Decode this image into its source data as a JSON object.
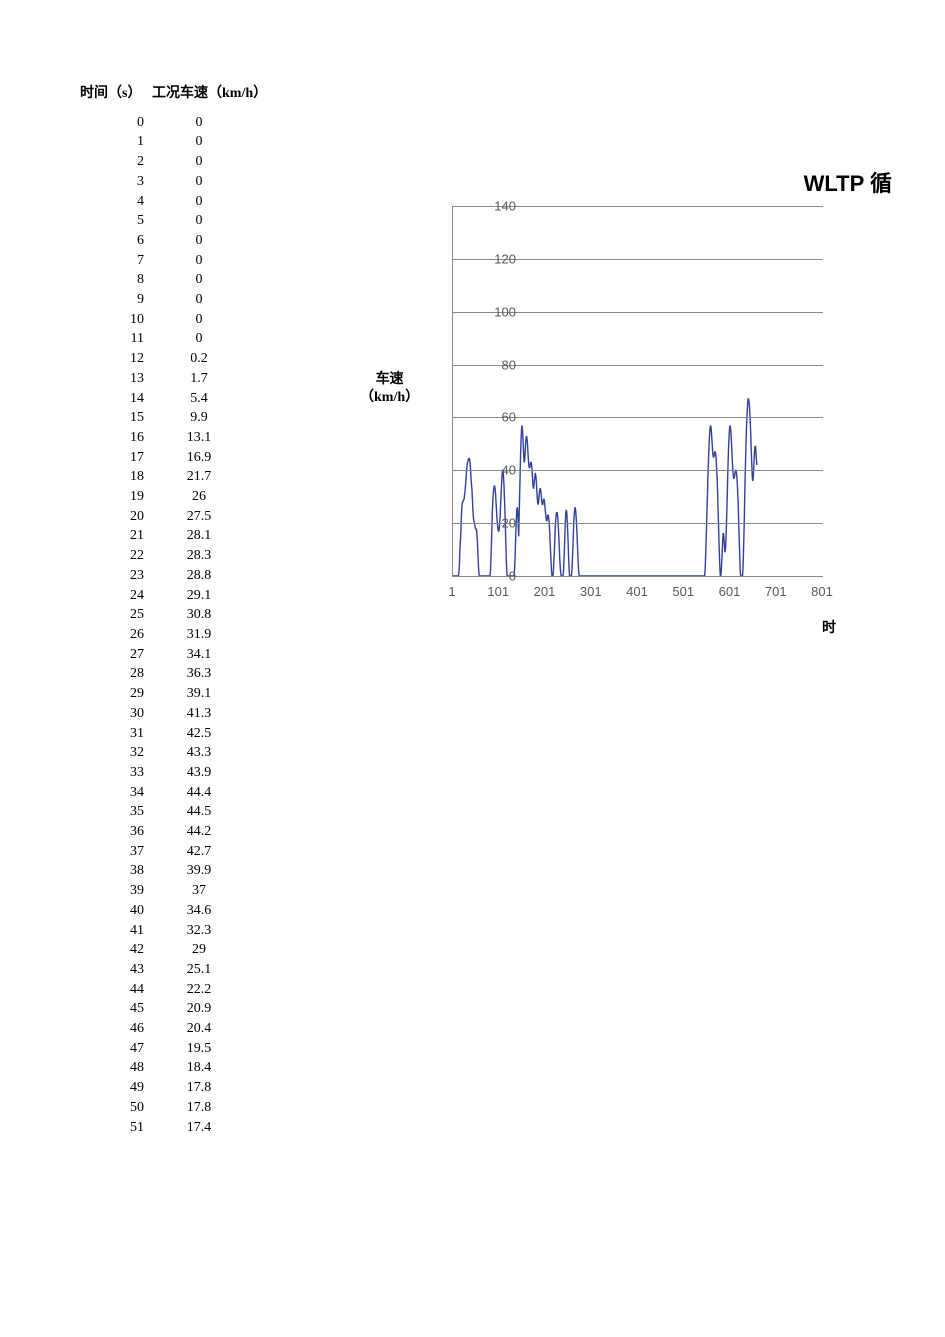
{
  "table": {
    "header_time": "时间（s）",
    "header_speed": "工况车速（km/h）",
    "rows": [
      [
        0,
        "0"
      ],
      [
        1,
        "0"
      ],
      [
        2,
        "0"
      ],
      [
        3,
        "0"
      ],
      [
        4,
        "0"
      ],
      [
        5,
        "0"
      ],
      [
        6,
        "0"
      ],
      [
        7,
        "0"
      ],
      [
        8,
        "0"
      ],
      [
        9,
        "0"
      ],
      [
        10,
        "0"
      ],
      [
        11,
        "0"
      ],
      [
        12,
        "0.2"
      ],
      [
        13,
        "1.7"
      ],
      [
        14,
        "5.4"
      ],
      [
        15,
        "9.9"
      ],
      [
        16,
        "13.1"
      ],
      [
        17,
        "16.9"
      ],
      [
        18,
        "21.7"
      ],
      [
        19,
        "26"
      ],
      [
        20,
        "27.5"
      ],
      [
        21,
        "28.1"
      ],
      [
        22,
        "28.3"
      ],
      [
        23,
        "28.8"
      ],
      [
        24,
        "29.1"
      ],
      [
        25,
        "30.8"
      ],
      [
        26,
        "31.9"
      ],
      [
        27,
        "34.1"
      ],
      [
        28,
        "36.3"
      ],
      [
        29,
        "39.1"
      ],
      [
        30,
        "41.3"
      ],
      [
        31,
        "42.5"
      ],
      [
        32,
        "43.3"
      ],
      [
        33,
        "43.9"
      ],
      [
        34,
        "44.4"
      ],
      [
        35,
        "44.5"
      ],
      [
        36,
        "44.2"
      ],
      [
        37,
        "42.7"
      ],
      [
        38,
        "39.9"
      ],
      [
        39,
        "37"
      ],
      [
        40,
        "34.6"
      ],
      [
        41,
        "32.3"
      ],
      [
        42,
        "29"
      ],
      [
        43,
        "25.1"
      ],
      [
        44,
        "22.2"
      ],
      [
        45,
        "20.9"
      ],
      [
        46,
        "20.4"
      ],
      [
        47,
        "19.5"
      ],
      [
        48,
        "18.4"
      ],
      [
        49,
        "17.8"
      ],
      [
        50,
        "17.8"
      ],
      [
        51,
        "17.4"
      ]
    ]
  },
  "chart": {
    "type": "line",
    "title": "WLTP 循",
    "ylabel_line1": "车速",
    "ylabel_line2": "（km/h）",
    "xlabel": "时",
    "ylim": [
      0,
      140
    ],
    "ytick_step": 20,
    "xlim": [
      1,
      801
    ],
    "xtick_start": 1,
    "xtick_step": 100,
    "line_color": "#31409c",
    "line_width": 1.4,
    "grid_color": "#888888",
    "tick_color": "#595959",
    "background_color": "#ffffff",
    "tick_fontsize": 13,
    "label_fontsize": 14,
    "title_fontsize": 22,
    "series": [
      0,
      0,
      0,
      0,
      0,
      0,
      0,
      0,
      0,
      0,
      0,
      0,
      0.2,
      1.7,
      5.4,
      9.9,
      13.1,
      16.9,
      21.7,
      26,
      27.5,
      28.1,
      28.3,
      28.8,
      29.1,
      30.8,
      31.9,
      34.1,
      36.3,
      39.1,
      41.3,
      42.5,
      43.3,
      43.9,
      44.4,
      44.5,
      44.2,
      42.7,
      39.9,
      37,
      34.6,
      32.3,
      29,
      25.1,
      22.2,
      20.9,
      20.4,
      19.5,
      18.4,
      17.8,
      17.8,
      17.4,
      15,
      12,
      8,
      4,
      1,
      0,
      0,
      0,
      0,
      0,
      0,
      0,
      0,
      0,
      0,
      0,
      0,
      0,
      0,
      0,
      0,
      0,
      0,
      0,
      0,
      0,
      0,
      0,
      0,
      2,
      6,
      12,
      18,
      24,
      28,
      31,
      33,
      34,
      34,
      33,
      31,
      28,
      25,
      22,
      20,
      18,
      17,
      17,
      18,
      20,
      23,
      27,
      31,
      35,
      38,
      40,
      40,
      38,
      35,
      31,
      26,
      20,
      14,
      8,
      3,
      0,
      0,
      0,
      0,
      0,
      0,
      0,
      0,
      0,
      0,
      0,
      0,
      0,
      0,
      0,
      0,
      2,
      6,
      11,
      17,
      22,
      25,
      26,
      24,
      20,
      15,
      22,
      30,
      38,
      45,
      51,
      55,
      57,
      56,
      53,
      49,
      45,
      43,
      44,
      47,
      50,
      52,
      53,
      52,
      50,
      47,
      44,
      42,
      41,
      41,
      42,
      43,
      43,
      42,
      40,
      37,
      34,
      33,
      34,
      36,
      38,
      39,
      38,
      36,
      33,
      30,
      28,
      27,
      28,
      30,
      32,
      33,
      33,
      32,
      30,
      28,
      27,
      27,
      28,
      29,
      29,
      28,
      26,
      24,
      22,
      21,
      21,
      22,
      23,
      23,
      22,
      20,
      17,
      13,
      9,
      5,
      2,
      0,
      0,
      0,
      2,
      5,
      9,
      14,
      18,
      21,
      23,
      24,
      24,
      23,
      21,
      18,
      14,
      10,
      6,
      3,
      1,
      0,
      0,
      0,
      0,
      0,
      2,
      6,
      11,
      16,
      21,
      24,
      25,
      24,
      21,
      17,
      12,
      7,
      3,
      0,
      0,
      0,
      0,
      0,
      2,
      5,
      10,
      15,
      20,
      23,
      25,
      26,
      25,
      23,
      20,
      16,
      12,
      8,
      4,
      1,
      0,
      0,
      0,
      0,
      0,
      0,
      0,
      0,
      0,
      0,
      0,
      0,
      0,
      0,
      0,
      0,
      0,
      0,
      0,
      0,
      0,
      0,
      0,
      0,
      0,
      0,
      0,
      0,
      0,
      0,
      0,
      0,
      0,
      0,
      0,
      0,
      0,
      0,
      0,
      0,
      0,
      0,
      0,
      0,
      0,
      0,
      0,
      0,
      0,
      0,
      0,
      0,
      0,
      0,
      0,
      0,
      0,
      0,
      0,
      0,
      0,
      0,
      0,
      0,
      0,
      0,
      0,
      0,
      0,
      0,
      0,
      0,
      0,
      0,
      0,
      0,
      0,
      0,
      0,
      0,
      0,
      0,
      0,
      0,
      0,
      0,
      0,
      0,
      0,
      0,
      0,
      0,
      0,
      0,
      0,
      0,
      0,
      0,
      0,
      0,
      0,
      0,
      0,
      0,
      0,
      0,
      0,
      0,
      0,
      0,
      0,
      0,
      0,
      0,
      0,
      0,
      0,
      0,
      0,
      0,
      0,
      0,
      0,
      0,
      0,
      0,
      0,
      0,
      0,
      0,
      0,
      0,
      0,
      0,
      0,
      0,
      0,
      0,
      0,
      0,
      0,
      0,
      0,
      0,
      0,
      0,
      0,
      0,
      0,
      0,
      0,
      0,
      0,
      0,
      0,
      0,
      0,
      0,
      0,
      0,
      0,
      0,
      0,
      0,
      0,
      0,
      0,
      0,
      0,
      0,
      0,
      0,
      0,
      0,
      0,
      0,
      0,
      0,
      0,
      0,
      0,
      0,
      0,
      0,
      0,
      0,
      0,
      0,
      0,
      0,
      0,
      0,
      0,
      0,
      0,
      0,
      0,
      0,
      0,
      0,
      0,
      0,
      0,
      0,
      0,
      0,
      0,
      0,
      0,
      0,
      0,
      0,
      0,
      0,
      0,
      0,
      0,
      0,
      0,
      0,
      0,
      0,
      0,
      0,
      0,
      0,
      0,
      0,
      0,
      0,
      0,
      0,
      0,
      0,
      0,
      0,
      0,
      0,
      0,
      0,
      0,
      0,
      0,
      0,
      0,
      0,
      0,
      0,
      0,
      0,
      0,
      0,
      0,
      0,
      0,
      0,
      0,
      0,
      0,
      0,
      0,
      0,
      0,
      0,
      0,
      0,
      0,
      0,
      0,
      0,
      0,
      0,
      2,
      6,
      12,
      18,
      24,
      30,
      36,
      42,
      47,
      51,
      54,
      56,
      57,
      56,
      54,
      51,
      48,
      46,
      45,
      45,
      46,
      47,
      47,
      46,
      44,
      41,
      37,
      32,
      26,
      20,
      14,
      8,
      3,
      0,
      0,
      2,
      5,
      9,
      13,
      16,
      16,
      14,
      11,
      9,
      10,
      13,
      18,
      24,
      31,
      38,
      44,
      49,
      53,
      56,
      57,
      56,
      54,
      51,
      47,
      43,
      40,
      38,
      37,
      37,
      38,
      39,
      40,
      40,
      39,
      37,
      34,
      30,
      25,
      19,
      13,
      7,
      2,
      0,
      0,
      0,
      0,
      0,
      3,
      8,
      15,
      23,
      32,
      40,
      47,
      53,
      58,
      62,
      65,
      67,
      67,
      66,
      64,
      61,
      57,
      52,
      47,
      42,
      38,
      36,
      37,
      40,
      44,
      47,
      49,
      49,
      47,
      44,
      42
    ]
  }
}
